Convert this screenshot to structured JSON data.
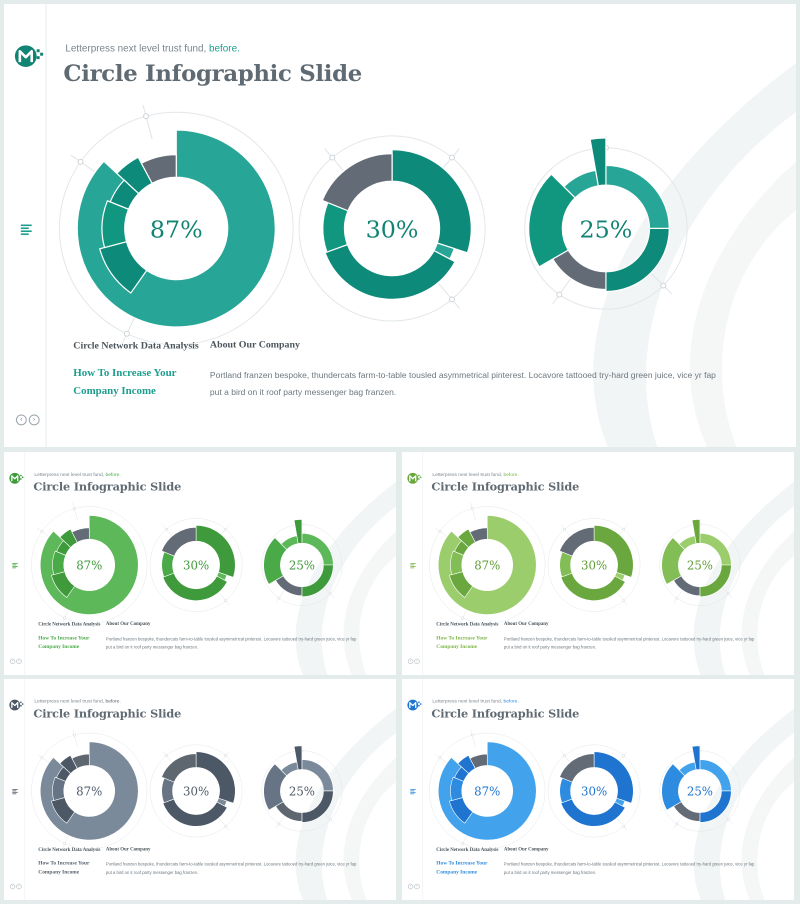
{
  "slide": {
    "tagline_prefix": "Letterpress next level trust fund,",
    "tagline_highlight": "before.",
    "title": "Circle Infographic Slide",
    "label_left": "Circle  Network Data Analysis",
    "label_right": "About Our Company",
    "sub_heading_line1": "How To Increase Your",
    "sub_heading_line2": "Company  Income",
    "body_text": "Portland franzen  bespoke, thundercats farm-to-table tousled asymmetrical pinterest. Locavore tattooed try-hard green juice, vice yr fap put a bird on it roof party messenger bag franzen.",
    "icons": [
      "m-logo-icon",
      "menu-icon",
      "arrow-left-icon",
      "arrow-right-icon"
    ]
  },
  "chart_data": [
    {
      "type": "pie",
      "label": "87%",
      "value": 87
    },
    {
      "type": "pie",
      "label": "30%",
      "value": 30
    },
    {
      "type": "pie",
      "label": "25%",
      "value": 25
    }
  ],
  "variants": [
    {
      "name": "teal",
      "colors": {
        "c1": "#27a697",
        "c2": "#0e8a7a",
        "c3": "#11977f",
        "gray": "#636b77",
        "accent": "#1c9e8e",
        "pct": "#128474",
        "logo": "#128474"
      }
    },
    {
      "name": "green",
      "colors": {
        "c1": "#5db85a",
        "c2": "#3f9a3b",
        "c3": "#4aaa47",
        "gray": "#636b77",
        "accent": "#4aaa47",
        "pct": "#3f9a3b",
        "logo": "#3f9a3b"
      }
    },
    {
      "name": "lime",
      "colors": {
        "c1": "#9ccd6d",
        "c2": "#6aa83f",
        "c3": "#82bd55",
        "gray": "#636b77",
        "accent": "#7cb547",
        "pct": "#5f9c36",
        "logo": "#6aa83f"
      }
    },
    {
      "name": "slate",
      "colors": {
        "c1": "#7b8a9a",
        "c2": "#4c5866",
        "c3": "#667485",
        "gray": "#5e6770",
        "accent": "#56606b",
        "pct": "#4f5b68",
        "logo": "#4c5866"
      }
    },
    {
      "name": "blue",
      "colors": {
        "c1": "#42a3ec",
        "c2": "#1e74cf",
        "c3": "#2e8ce0",
        "gray": "#636b77",
        "accent": "#2e8ce0",
        "pct": "#1e74cf",
        "logo": "#1e74cf"
      }
    }
  ]
}
